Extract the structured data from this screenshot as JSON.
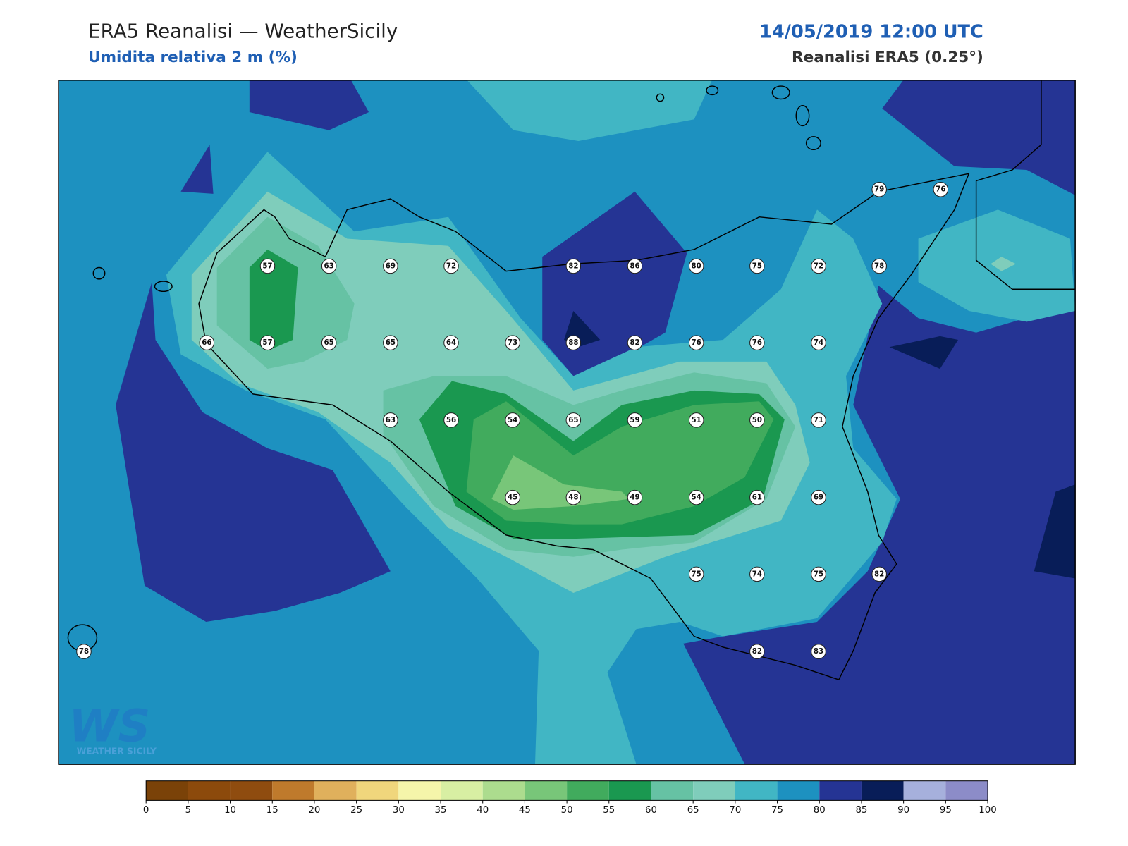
{
  "header": {
    "title": "ERA5 Reanalisi — WeatherSicily",
    "subtitle": "Umidita relativa 2 m (%)",
    "date": "14/05/2019 12:00 UTC",
    "source": "Reanalisi ERA5 (0.25°)"
  },
  "stations": [
    79,
    76,
    57,
    63,
    69,
    72,
    82,
    86,
    80,
    75,
    72,
    78,
    66,
    57,
    65,
    65,
    64,
    73,
    88,
    82,
    76,
    76,
    74,
    63,
    56,
    54,
    65,
    59,
    51,
    50,
    71,
    45,
    48,
    49,
    54,
    61,
    69,
    75,
    74,
    75,
    82,
    78,
    82,
    83
  ],
  "colorbar": {
    "ticks": [
      0,
      5,
      10,
      15,
      20,
      25,
      30,
      35,
      40,
      45,
      50,
      55,
      60,
      65,
      70,
      75,
      80,
      85,
      90,
      95,
      100
    ],
    "colors": [
      "#7a4208",
      "#8c4a0c",
      "#8f4c0f",
      "#bf7a2c",
      "#e0b05c",
      "#f0d67c",
      "#f5f5aa",
      "#d8efa3",
      "#acdc8e",
      "#78c679",
      "#41ab5d",
      "#1a9850",
      "#66c2a4",
      "#7fcdbb",
      "#41b6c4",
      "#1d91c0",
      "#253494",
      "#081d58",
      "#a6b0dc",
      "#8c8cc8"
    ]
  },
  "logo": {
    "mark": "WS",
    "text": "WEATHER SICILY"
  }
}
